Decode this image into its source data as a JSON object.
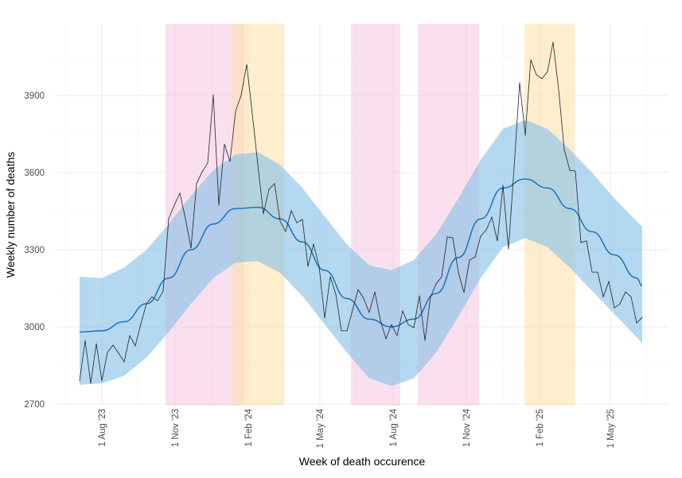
{
  "chart_data": {
    "type": "line",
    "title": "",
    "xlabel": "Week of death occurence",
    "ylabel": "Weekly number of deaths",
    "ylim": [
      2650,
      4150
    ],
    "xlim": [
      "2023-06-16",
      "2025-07-01"
    ],
    "grid": true,
    "legend": "none",
    "y_ticks": [
      2700,
      3000,
      3300,
      3600,
      3900
    ],
    "x_ticks": [
      {
        "date": "2023-08-01",
        "label": "1 Aug '23"
      },
      {
        "date": "2023-11-01",
        "label": "1 Nov '23"
      },
      {
        "date": "2024-02-01",
        "label": "1 Feb '24"
      },
      {
        "date": "2024-05-01",
        "label": "1 May '24"
      },
      {
        "date": "2024-08-01",
        "label": "1 Aug '24"
      },
      {
        "date": "2024-11-01",
        "label": "1 Nov '24"
      },
      {
        "date": "2025-02-01",
        "label": "1 Feb '25"
      },
      {
        "date": "2025-05-01",
        "label": "1 May '25"
      }
    ],
    "shaded_periods": [
      {
        "start": "2023-10-20",
        "end": "2024-01-27",
        "color": "#f5c6e0"
      },
      {
        "start": "2024-01-12",
        "end": "2024-03-17",
        "color": "#fde0a6"
      },
      {
        "start": "2024-06-09",
        "end": "2024-08-10",
        "color": "#f5c6e0"
      },
      {
        "start": "2024-09-01",
        "end": "2024-11-17",
        "color": "#f5c6e0"
      },
      {
        "start": "2025-01-13",
        "end": "2025-03-17",
        "color": "#fde0a6"
      }
    ],
    "band": {
      "color": "#86c0e6",
      "line_color": "#1a72bb",
      "dates": [
        "2023-07-04",
        "2023-08-01",
        "2023-08-29",
        "2023-09-26",
        "2023-10-24",
        "2023-11-21",
        "2023-12-19",
        "2024-01-16",
        "2024-02-13",
        "2024-03-12",
        "2024-04-09",
        "2024-05-07",
        "2024-06-04",
        "2024-07-02",
        "2024-07-30",
        "2024-08-27",
        "2024-09-24",
        "2024-10-22",
        "2024-11-19",
        "2024-12-17",
        "2025-01-14",
        "2025-02-11",
        "2025-03-11",
        "2025-04-08",
        "2025-05-06",
        "2025-06-03",
        "2025-06-10"
      ],
      "expected": [
        2980,
        2985,
        3020,
        3090,
        3190,
        3300,
        3400,
        3460,
        3465,
        3420,
        3330,
        3220,
        3110,
        3030,
        3000,
        3030,
        3130,
        3270,
        3420,
        3540,
        3575,
        3540,
        3460,
        3370,
        3280,
        3190,
        3160
      ],
      "upper": [
        3195,
        3190,
        3230,
        3300,
        3400,
        3510,
        3610,
        3670,
        3680,
        3630,
        3540,
        3430,
        3320,
        3240,
        3220,
        3260,
        3360,
        3500,
        3650,
        3770,
        3805,
        3770,
        3690,
        3600,
        3500,
        3410,
        3390
      ],
      "lower": [
        2775,
        2780,
        2810,
        2880,
        2980,
        3090,
        3190,
        3250,
        3255,
        3210,
        3120,
        3010,
        2900,
        2800,
        2770,
        2800,
        2900,
        3040,
        3190,
        3310,
        3345,
        3310,
        3230,
        3140,
        3050,
        2960,
        2935
      ]
    },
    "series": [
      {
        "color": "#222222",
        "dates": [
          "2023-07-04",
          "2023-07-11",
          "2023-07-18",
          "2023-07-25",
          "2023-08-01",
          "2023-08-08",
          "2023-08-15",
          "2023-08-22",
          "2023-08-29",
          "2023-09-05",
          "2023-09-12",
          "2023-09-19",
          "2023-09-26",
          "2023-10-03",
          "2023-10-10",
          "2023-10-17",
          "2023-10-24",
          "2023-10-31",
          "2023-11-07",
          "2023-11-14",
          "2023-11-21",
          "2023-11-28",
          "2023-12-05",
          "2023-12-12",
          "2023-12-19",
          "2023-12-26",
          "2024-01-02",
          "2024-01-09",
          "2024-01-16",
          "2024-01-23",
          "2024-01-30",
          "2024-02-06",
          "2024-02-13",
          "2024-02-20",
          "2024-02-27",
          "2024-03-05",
          "2024-03-12",
          "2024-03-19",
          "2024-03-26",
          "2024-04-02",
          "2024-04-09",
          "2024-04-16",
          "2024-04-23",
          "2024-04-30",
          "2024-05-07",
          "2024-05-14",
          "2024-05-21",
          "2024-05-28",
          "2024-06-04",
          "2024-06-11",
          "2024-06-18",
          "2024-06-25",
          "2024-07-02",
          "2024-07-09",
          "2024-07-16",
          "2024-07-23",
          "2024-07-30",
          "2024-08-06",
          "2024-08-13",
          "2024-08-20",
          "2024-08-27",
          "2024-09-03",
          "2024-09-10",
          "2024-09-17",
          "2024-09-24",
          "2024-10-01",
          "2024-10-08",
          "2024-10-15",
          "2024-10-22",
          "2024-10-29",
          "2024-11-05",
          "2024-11-12",
          "2024-11-19",
          "2024-11-26",
          "2024-12-03",
          "2024-12-10",
          "2024-12-17",
          "2024-12-24",
          "2024-12-31",
          "2025-01-07",
          "2025-01-14",
          "2025-01-21",
          "2025-01-28",
          "2025-02-04",
          "2025-02-11",
          "2025-02-18",
          "2025-02-25",
          "2025-03-04",
          "2025-03-11",
          "2025-03-18",
          "2025-03-25",
          "2025-04-01",
          "2025-04-08",
          "2025-04-15",
          "2025-04-22",
          "2025-04-29",
          "2025-05-06",
          "2025-05-13",
          "2025-05-20",
          "2025-05-27",
          "2025-06-03",
          "2025-06-10"
        ],
        "values": [
          2790,
          2947,
          2780,
          2935,
          2790,
          2901,
          2929,
          2898,
          2864,
          2966,
          2926,
          3012,
          3090,
          3117,
          3102,
          3139,
          3421,
          3473,
          3520,
          3421,
          3306,
          3557,
          3603,
          3637,
          3903,
          3473,
          3711,
          3643,
          3838,
          3900,
          4021,
          3830,
          3630,
          3439,
          3535,
          3557,
          3411,
          3371,
          3452,
          3405,
          3418,
          3235,
          3322,
          3235,
          3034,
          3195,
          3127,
          2985,
          2985,
          3065,
          3145,
          3111,
          3056,
          3136,
          3025,
          2954,
          3009,
          2966,
          3062,
          3009,
          2997,
          3121,
          2947,
          3117,
          3167,
          3195,
          3350,
          3346,
          3213,
          3133,
          3260,
          3272,
          3353,
          3377,
          3427,
          3334,
          3551,
          3303,
          3620,
          3950,
          3745,
          4039,
          3980,
          3965,
          3993,
          4107,
          3922,
          3690,
          3609,
          3606,
          3328,
          3334,
          3213,
          3213,
          3117,
          3176,
          3074,
          3090,
          3136,
          3117,
          3015,
          3037
        ]
      }
    ]
  }
}
